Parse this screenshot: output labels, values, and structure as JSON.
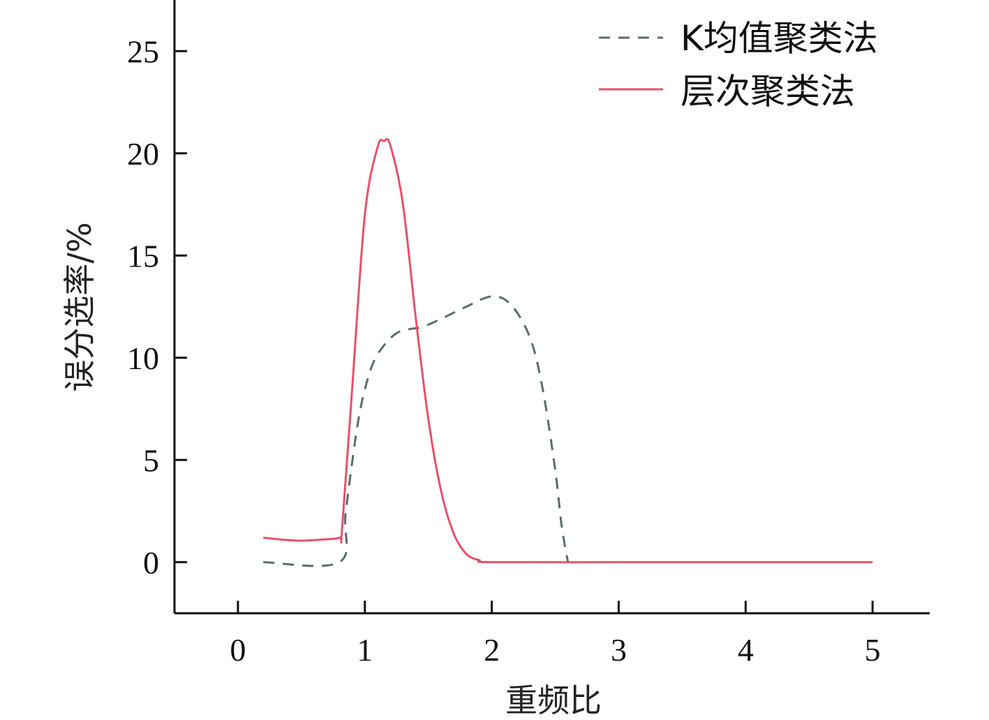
{
  "chart_data": {
    "type": "line",
    "title": "",
    "xlabel": "重频比",
    "ylabel": "误分选率/%",
    "xlim": [
      -0.5,
      5.45
    ],
    "ylim": [
      -2.5,
      27.5
    ],
    "xticks": [
      0,
      1,
      2,
      3,
      4,
      5
    ],
    "yticks": [
      0,
      5,
      10,
      15,
      20,
      25
    ],
    "grid": false,
    "legend_position": "top-right",
    "series": [
      {
        "name": "K均值聚类法",
        "style": "dashed",
        "color": "#5a6b6b",
        "x": [
          0.2,
          0.8,
          0.85,
          0.95,
          1.05,
          1.15,
          1.25,
          1.35,
          1.45,
          1.6,
          1.8,
          2.0,
          2.15,
          2.3,
          2.4,
          2.5,
          2.55,
          2.6
        ],
        "y": [
          0,
          0,
          2.5,
          7.0,
          9.5,
          10.6,
          11.2,
          11.4,
          11.5,
          11.9,
          12.5,
          13.0,
          12.6,
          11.0,
          8.5,
          4.5,
          1.8,
          0
        ]
      },
      {
        "name": "层次聚类法",
        "style": "solid",
        "color": "#e8506c",
        "x": [
          0.2,
          0.35,
          0.5,
          0.65,
          0.8,
          0.82,
          0.9,
          1.0,
          1.1,
          1.15,
          1.2,
          1.3,
          1.4,
          1.5,
          1.6,
          1.7,
          1.8,
          1.9,
          2.0,
          3.0,
          4.0,
          5.0
        ],
        "y": [
          1.2,
          1.1,
          1.05,
          1.1,
          1.2,
          1.6,
          8.5,
          17.0,
          20.3,
          20.6,
          20.4,
          17.5,
          12.0,
          7.0,
          3.5,
          1.4,
          0.4,
          0.1,
          0,
          0,
          0,
          0
        ]
      }
    ]
  }
}
